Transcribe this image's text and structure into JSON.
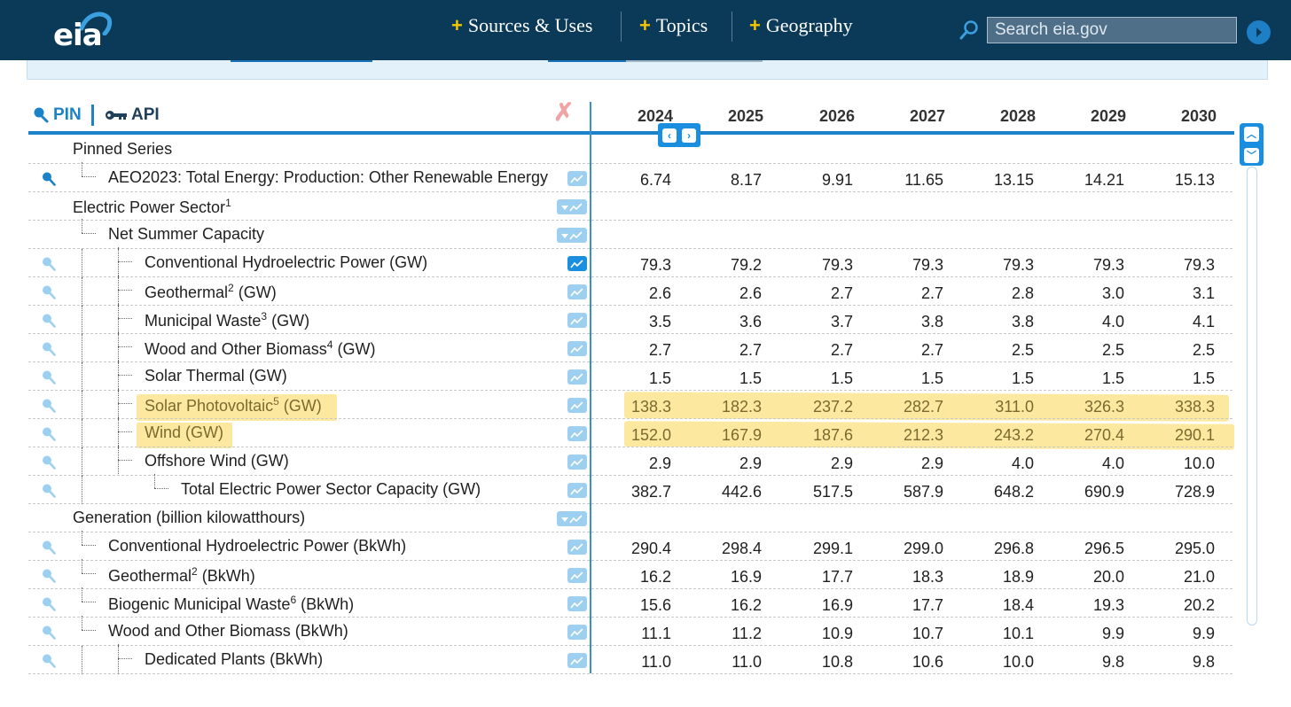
{
  "header": {
    "logo": "eia",
    "nav": [
      {
        "label": "Sources & Uses"
      },
      {
        "label": "Topics"
      },
      {
        "label": "Geography"
      }
    ],
    "search_placeholder": "Search eia.gov"
  },
  "toolbar": {
    "pin_label": "PIN",
    "api_label": "API"
  },
  "years": [
    "2024",
    "2025",
    "2026",
    "2027",
    "2028",
    "2029",
    "2030"
  ],
  "rows": [
    {
      "label": "Pinned Series",
      "sup": "",
      "suffix": "",
      "values": []
    },
    {
      "label": "AEO2023: Total Energy: Production: Other Renewable Energy",
      "sup": "",
      "suffix": "",
      "values": [
        "6.74",
        "8.17",
        "9.91",
        "11.65",
        "13.15",
        "14.21",
        "15.13"
      ]
    },
    {
      "label": "Electric Power Sector",
      "sup": "1",
      "suffix": "",
      "values": []
    },
    {
      "label": "Net Summer Capacity",
      "sup": "",
      "suffix": "",
      "values": []
    },
    {
      "label": "Conventional Hydroelectric Power (GW)",
      "sup": "",
      "suffix": "",
      "values": [
        "79.3",
        "79.2",
        "79.3",
        "79.3",
        "79.3",
        "79.3",
        "79.3"
      ]
    },
    {
      "label": "Geothermal",
      "sup": "2",
      "suffix": " (GW)",
      "values": [
        "2.6",
        "2.6",
        "2.7",
        "2.7",
        "2.8",
        "3.0",
        "3.1"
      ]
    },
    {
      "label": "Municipal Waste",
      "sup": "3",
      "suffix": " (GW)",
      "values": [
        "3.5",
        "3.6",
        "3.7",
        "3.8",
        "3.8",
        "4.0",
        "4.1"
      ]
    },
    {
      "label": "Wood and Other Biomass",
      "sup": "4",
      "suffix": " (GW)",
      "values": [
        "2.7",
        "2.7",
        "2.7",
        "2.7",
        "2.5",
        "2.5",
        "2.5"
      ]
    },
    {
      "label": "Solar Thermal (GW)",
      "sup": "",
      "suffix": "",
      "values": [
        "1.5",
        "1.5",
        "1.5",
        "1.5",
        "1.5",
        "1.5",
        "1.5"
      ]
    },
    {
      "label": "Solar Photovoltaic",
      "sup": "5",
      "suffix": " (GW)",
      "values": [
        "138.3",
        "182.3",
        "237.2",
        "282.7",
        "311.0",
        "326.3",
        "338.3"
      ]
    },
    {
      "label": "Wind (GW)",
      "sup": "",
      "suffix": "",
      "values": [
        "152.0",
        "167.9",
        "187.6",
        "212.3",
        "243.2",
        "270.4",
        "290.1"
      ]
    },
    {
      "label": "Offshore Wind (GW)",
      "sup": "",
      "suffix": "",
      "values": [
        "2.9",
        "2.9",
        "2.9",
        "2.9",
        "4.0",
        "4.0",
        "10.0"
      ]
    },
    {
      "label": "Total Electric Power Sector Capacity (GW)",
      "sup": "",
      "suffix": "",
      "values": [
        "382.7",
        "442.6",
        "517.5",
        "587.9",
        "648.2",
        "690.9",
        "728.9"
      ]
    },
    {
      "label": "Generation (billion kilowatthours)",
      "sup": "",
      "suffix": "",
      "values": []
    },
    {
      "label": "Conventional Hydroelectric Power (BkWh)",
      "sup": "",
      "suffix": "",
      "values": [
        "290.4",
        "298.4",
        "299.1",
        "299.0",
        "296.8",
        "296.5",
        "295.0"
      ]
    },
    {
      "label": "Geothermal",
      "sup": "2",
      "suffix": " (BkWh)",
      "values": [
        "16.2",
        "16.9",
        "17.7",
        "18.3",
        "18.9",
        "20.0",
        "21.0"
      ]
    },
    {
      "label": "Biogenic Municipal Waste",
      "sup": "6",
      "suffix": " (BkWh)",
      "values": [
        "15.6",
        "16.2",
        "16.9",
        "17.7",
        "18.4",
        "19.3",
        "20.2"
      ]
    },
    {
      "label": "Wood and Other Biomass (BkWh)",
      "sup": "",
      "suffix": "",
      "values": [
        "11.1",
        "11.2",
        "10.9",
        "10.7",
        "10.1",
        "9.9",
        "9.9"
      ]
    },
    {
      "label": "Dedicated Plants (BkWh)",
      "sup": "",
      "suffix": "",
      "values": [
        "11.0",
        "11.0",
        "10.8",
        "10.6",
        "10.0",
        "9.8",
        "9.8"
      ]
    }
  ]
}
